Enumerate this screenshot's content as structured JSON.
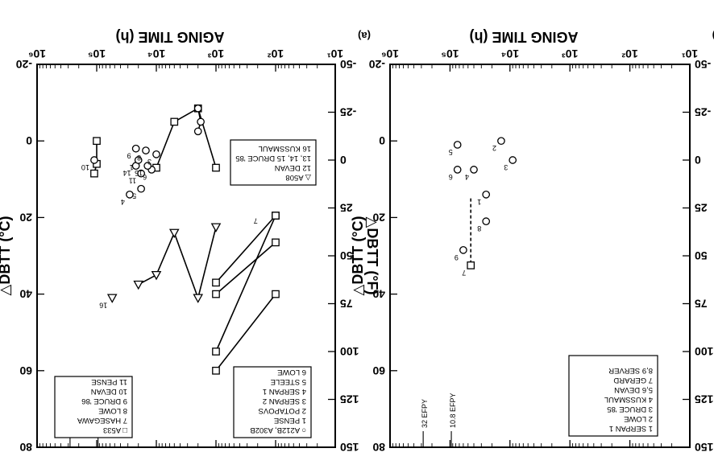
{
  "chart_data": [
    {
      "panel_id": "a",
      "type": "scatter",
      "panel_label": "(a)",
      "xlabel": "AGING TIME (h)",
      "ylabel_left": "△DBTT (°F)",
      "ylabel_right": "△DBTT (°C)",
      "xscale": "log",
      "xlim": [
        10,
        1000000
      ],
      "ylim_left": [
        -50,
        150
      ],
      "ylim_right": [
        -20,
        80
      ],
      "x_ticks": [
        "10¹",
        "10²",
        "10³",
        "10⁴",
        "10⁵",
        "10⁶"
      ],
      "yleft_ticks": [
        "-50",
        "-25",
        "0",
        "25",
        "50",
        "75",
        "100",
        "125",
        "150"
      ],
      "yright_ticks": [
        "-20",
        "0",
        "20",
        "40",
        "60",
        "80"
      ],
      "efpy_markers": [
        {
          "label": "10.8 EFPY",
          "x": 95000
        },
        {
          "label": "32 EFPY",
          "x": 280000
        }
      ],
      "legends": [
        {
          "title": "○ A212B, A302B",
          "entries": [
            "1  PENSE",
            "2  POTAPOVS",
            "3  SERPAN 2",
            "4  SERPAN 1",
            "5  STEELE",
            "6  LOWE"
          ]
        },
        {
          "title": "□ A533",
          "entries": [
            "7  HASEGAWA",
            "8  LOWE",
            "9  DRUCE '86",
            "10  DEVAN",
            "11  PENSE"
          ]
        },
        {
          "title": "△ A508",
          "entries": [
            "12  DEVAN",
            "13, 14, 15  DRUCE '85",
            "16  KUSSMAUL"
          ]
        }
      ],
      "series": [
        {
          "name": "7",
          "marker": "square",
          "x": [
            100,
            1000
          ],
          "y": [
            70,
            110
          ]
        },
        {
          "name": "7",
          "marker": "square",
          "x": [
            100,
            1000
          ],
          "y": [
            43,
            70
          ]
        },
        {
          "name": "7",
          "marker": "square",
          "x": [
            100,
            1000
          ],
          "y": [
            29,
            100
          ]
        },
        {
          "name": "7",
          "marker": "square",
          "x": [
            100,
            1000
          ],
          "y": [
            29,
            64
          ]
        },
        {
          "name": "13",
          "marker": "triangle",
          "x": [
            1000,
            2000,
            5000,
            10000,
            20000
          ],
          "y": [
            35,
            72,
            38,
            60,
            65
          ]
        },
        {
          "name": "8",
          "marker": "square",
          "x": [
            1000,
            2000,
            5000,
            10000
          ],
          "y": [
            4,
            -27,
            -20,
            4
          ]
        },
        {
          "name": "12",
          "marker": "square",
          "x": [
            100000,
            100000,
            110000
          ],
          "y": [
            -10,
            2,
            7
          ]
        },
        {
          "name": "2",
          "marker": "circle",
          "x": [
            2000,
            1800,
            2000
          ],
          "y": [
            -27,
            -20,
            -15
          ]
        }
      ],
      "points": [
        {
          "label": "7",
          "x": 200,
          "y": 28,
          "marker": "none"
        },
        {
          "label": "16",
          "x": 55000,
          "y": 72,
          "marker": "triangle"
        },
        {
          "label": "5",
          "x": 18000,
          "y": 15,
          "marker": "circle"
        },
        {
          "label": "4",
          "x": 28000,
          "y": 18,
          "marker": "circle"
        },
        {
          "label": "6",
          "x": 12000,
          "y": 5,
          "marker": "circle"
        },
        {
          "label": "11",
          "x": 18000,
          "y": 7,
          "marker": "circle"
        },
        {
          "label": "15",
          "x": 14000,
          "y": 3,
          "marker": "circle"
        },
        {
          "label": "14",
          "x": 22000,
          "y": 3,
          "marker": "circle"
        },
        {
          "label": "1",
          "x": 20000,
          "y": 0,
          "marker": "circle"
        },
        {
          "label": "3",
          "x": 10000,
          "y": -3,
          "marker": "circle"
        },
        {
          "label": "9",
          "x": 22000,
          "y": -6,
          "marker": "circle"
        },
        {
          "label": "8",
          "x": 15000,
          "y": -5,
          "marker": "circle"
        },
        {
          "label": "10",
          "x": 110000,
          "y": 0,
          "marker": "circle"
        }
      ]
    },
    {
      "panel_id": "b",
      "type": "scatter",
      "panel_label": "(b)",
      "xlabel": "AGING TIME (h)",
      "ylabel_left": "△DBTT (°F)",
      "ylabel_right": "△DBTT (°C)",
      "xscale": "log",
      "xlim": [
        10,
        1000000
      ],
      "ylim_left": [
        -50,
        150
      ],
      "ylim_right": [
        -20,
        80
      ],
      "x_ticks": [
        "10¹",
        "10²",
        "10³",
        "10⁴",
        "10⁵",
        "10⁶"
      ],
      "yleft_ticks": [
        "-50",
        "-25",
        "0",
        "25",
        "50",
        "75",
        "100",
        "125",
        "150"
      ],
      "yright_ticks": [
        "-20",
        "0",
        "20",
        "40",
        "60",
        "80"
      ],
      "efpy_markers": [
        {
          "label": "10.8 EFPY",
          "x": 95000
        },
        {
          "label": "32 EFPY",
          "x": 280000
        }
      ],
      "legends": [
        {
          "title": "",
          "entries": [
            "1  SERPAN 1",
            "2  LOWE",
            "3  DRUCE '85",
            "4  KUSSMAUL",
            "5,6  DEVAN",
            "7  GERARD",
            "8,9  SERVER"
          ]
        }
      ],
      "points": [
        {
          "label": "7",
          "x": 45000,
          "y": 55,
          "marker": "square"
        },
        {
          "label": "9",
          "x": 60000,
          "y": 47,
          "marker": "circle"
        },
        {
          "label": "8",
          "x": 25000,
          "y": 32,
          "marker": "circle"
        },
        {
          "label": "1",
          "x": 25000,
          "y": 18,
          "marker": "circle"
        },
        {
          "label": "4",
          "x": 40000,
          "y": 5,
          "marker": "circle"
        },
        {
          "label": "6",
          "x": 75000,
          "y": 5,
          "marker": "circle"
        },
        {
          "label": "5",
          "x": 75000,
          "y": -8,
          "marker": "circle"
        },
        {
          "label": "3",
          "x": 9000,
          "y": 0,
          "marker": "circle"
        },
        {
          "label": "2",
          "x": 14000,
          "y": -10,
          "marker": "circle"
        }
      ],
      "series": [
        {
          "name": "7",
          "marker": "none",
          "dashed": true,
          "x": [
            45000,
            45000
          ],
          "y": [
            20,
            55
          ]
        }
      ]
    }
  ]
}
